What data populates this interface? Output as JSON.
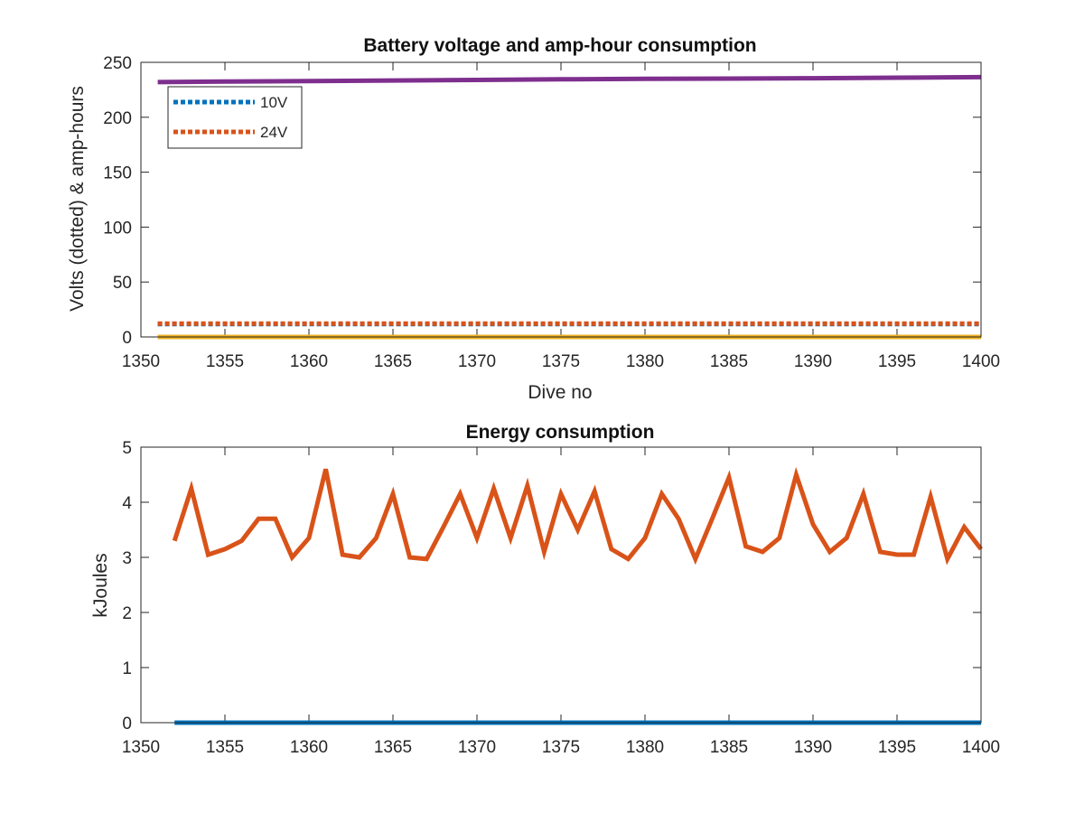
{
  "chart_data": [
    {
      "type": "line",
      "title": "Battery voltage and amp-hour consumption",
      "xlabel": "Dive no",
      "ylabel": "Volts (dotted) & amp-hours",
      "xlim": [
        1350,
        1400
      ],
      "ylim": [
        0,
        250
      ],
      "xticks": [
        "1350",
        "1355",
        "1360",
        "1365",
        "1370",
        "1375",
        "1380",
        "1385",
        "1390",
        "1395",
        "1400"
      ],
      "yticks": [
        "0",
        "50",
        "100",
        "150",
        "200",
        "250"
      ],
      "grid": false,
      "legend_position": "top-left",
      "legend": [
        "10V",
        "24V"
      ],
      "series": [
        {
          "name": "10V",
          "style": "dotted",
          "color": "#0072BD",
          "x": [
            1351,
            1400
          ],
          "y": [
            11.8,
            11.8
          ]
        },
        {
          "name": "24V",
          "style": "dotted",
          "color": "#D95319",
          "x": [
            1351,
            1400
          ],
          "y": [
            12.2,
            12.2
          ]
        },
        {
          "style": "solid",
          "color": "#EDB120",
          "x": [
            1351,
            1400
          ],
          "y": [
            0,
            0
          ]
        },
        {
          "style": "solid",
          "color": "#7E2F8E",
          "x": [
            1351,
            1355,
            1360,
            1365,
            1370,
            1375,
            1380,
            1385,
            1390,
            1395,
            1400
          ],
          "y": [
            232,
            232.5,
            233,
            233.5,
            234,
            234.5,
            235,
            235.2,
            235.5,
            236,
            236.5
          ]
        }
      ]
    },
    {
      "type": "line",
      "title": "Energy consumption",
      "xlabel": "",
      "ylabel": "kJoules",
      "xlim": [
        1350,
        1400
      ],
      "ylim": [
        0,
        5
      ],
      "xticks": [
        "1350",
        "1355",
        "1360",
        "1365",
        "1370",
        "1375",
        "1380",
        "1385",
        "1390",
        "1395",
        "1400"
      ],
      "yticks": [
        "0",
        "1",
        "2",
        "3",
        "4",
        "5"
      ],
      "grid": false,
      "series": [
        {
          "style": "solid",
          "color": "#0072BD",
          "x": [
            1352,
            1400
          ],
          "y": [
            0,
            0
          ]
        },
        {
          "style": "solid",
          "color": "#D95319",
          "x": [
            1352,
            1353,
            1354,
            1355,
            1356,
            1357,
            1358,
            1359,
            1360,
            1361,
            1362,
            1363,
            1364,
            1365,
            1366,
            1367,
            1368,
            1369,
            1370,
            1371,
            1372,
            1373,
            1374,
            1375,
            1376,
            1377,
            1378,
            1379,
            1380,
            1381,
            1382,
            1383,
            1384,
            1385,
            1386,
            1387,
            1388,
            1389,
            1390,
            1391,
            1392,
            1393,
            1394,
            1395,
            1396,
            1397,
            1398,
            1399,
            1400
          ],
          "y": [
            3.3,
            4.25,
            3.05,
            3.15,
            3.3,
            3.7,
            3.7,
            3.0,
            3.35,
            4.6,
            3.05,
            3.0,
            3.35,
            4.15,
            3.0,
            2.97,
            3.55,
            4.15,
            3.35,
            4.25,
            3.35,
            4.3,
            3.1,
            4.15,
            3.5,
            4.2,
            3.15,
            2.97,
            3.35,
            4.15,
            3.7,
            2.97,
            3.7,
            4.45,
            3.2,
            3.1,
            3.35,
            4.5,
            3.6,
            3.1,
            3.35,
            4.15,
            3.1,
            3.05,
            3.05,
            4.1,
            2.97,
            3.55,
            3.15
          ]
        }
      ]
    }
  ]
}
